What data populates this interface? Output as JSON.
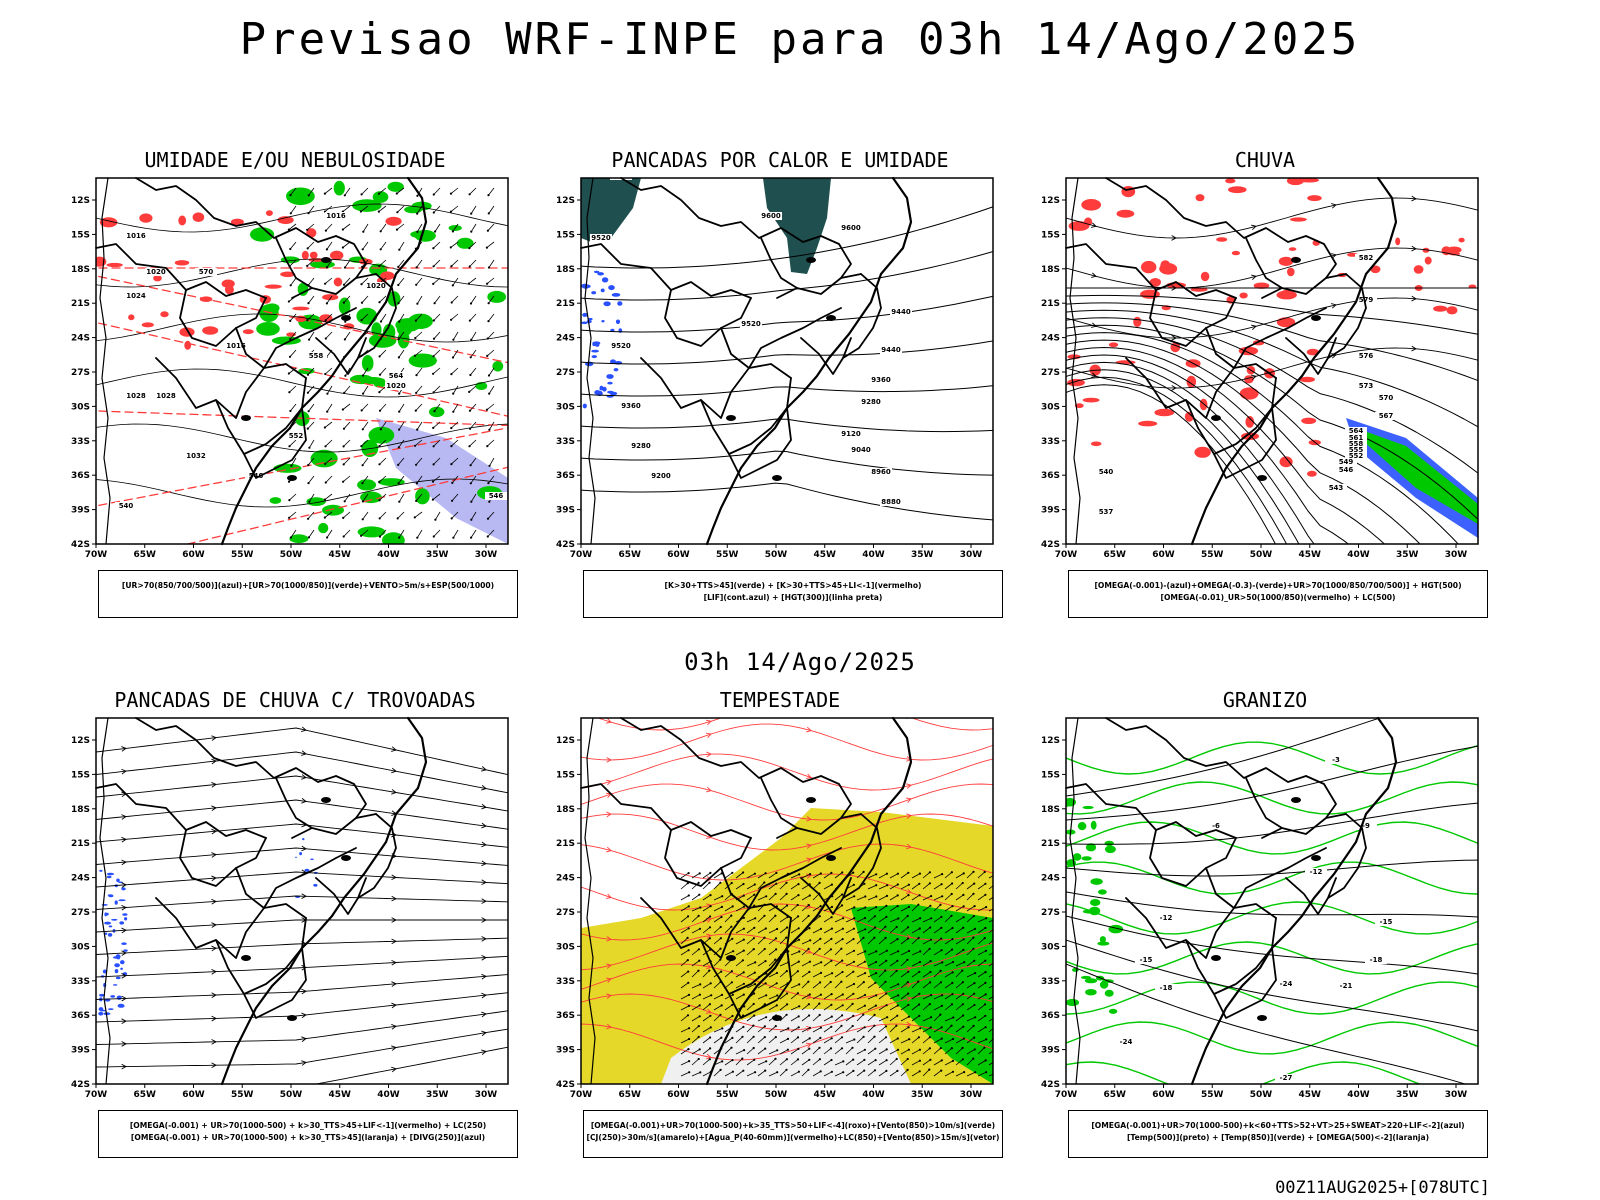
{
  "title": "Previsao WRF-INPE  para 03h 14/Ago/2025",
  "subtitle": "03h 14/Ago/2025",
  "footer": "00Z11AUG2025+[078UTC]",
  "axes": {
    "lat_ticks": [
      "12S",
      "15S",
      "18S",
      "21S",
      "24S",
      "27S",
      "30S",
      "33S",
      "36S",
      "39S",
      "42S"
    ],
    "lon_ticks": [
      "70W",
      "65W",
      "60W",
      "55W",
      "50W",
      "45W",
      "40W",
      "35W",
      "30W"
    ]
  },
  "colors": {
    "green": "#00c800",
    "red": "#ff3c3c",
    "blue": "#2850ff",
    "lavender": "#a6a6f0",
    "teal": "#1f4f4f",
    "yellow": "#e6d828",
    "black": "#000000"
  },
  "panels": [
    {
      "id": "umidade",
      "title": "UMIDADE E/OU NEBULOSIDADE",
      "legend": [
        "[UR>70(850/700/500)](azul)+[UR>70(1000/850)](verde)+VENTO>5m/s+ESP(500/1000)"
      ],
      "contour_labels": [
        "1016",
        "1016",
        "1020",
        "1020",
        "1024",
        "1028",
        "1028",
        "1032",
        "1016",
        "1020",
        "570",
        "564",
        "558",
        "552",
        "546",
        "540",
        "546"
      ]
    },
    {
      "id": "pancadas_calor",
      "title": "PANCADAS POR CALOR E UMIDADE",
      "legend": [
        "[K>30+TTS>45](verde) + [K>30+TTS>45+LI<-1](vermelho)",
        "[LIF](cont.azul) + [HGT(300)](linha preta)"
      ],
      "contour_labels": [
        "9600",
        "9600",
        "9600",
        "9520",
        "9520",
        "9520",
        "9440",
        "9440",
        "9360",
        "9360",
        "9280",
        "9280",
        "9200",
        "9120",
        "9040",
        "8960",
        "8880"
      ]
    },
    {
      "id": "chuva",
      "title": "CHUVA",
      "legend": [
        "[OMEGA(-0.001)-(azul)+OMEGA(-0.3)-(verde)+UR>70(1000/850/700/500)] + HGT(500)",
        "[OMEGA(-0.01)_UR>50(1000/850)(vermelho) + LC(500)"
      ],
      "contour_labels": [
        "582",
        "579",
        "576",
        "573",
        "570",
        "567",
        "564",
        "561",
        "558",
        "555",
        "552",
        "549",
        "546",
        "543",
        "540",
        "537"
      ]
    },
    {
      "id": "trovoadas",
      "title": "PANCADAS DE CHUVA C/ TROVOADAS",
      "legend": [
        "[OMEGA(-0.001) + UR>70(1000-500) + k>30_TTS>45+LIF<-1](vermelho) + LC(250)",
        "[OMEGA(-0.001) + UR>70(1000-500) + k>30_TTS>45](laranja) + [DIVG(250)](azul)"
      ],
      "contour_labels": []
    },
    {
      "id": "tempestade",
      "title": "TEMPESTADE",
      "legend": [
        "[OMEGA(-0.001)+UR>70(1000-500)+k>35_TTS>50+LIF<-4](roxo)+[Vento(850)>10m/s](verde)",
        "[CJ(250)>30m/s](amarelo)+[Agua_P(40-60mm)](vermelho)+LC(850)+[Vento(850)>15m/s](vetor)"
      ],
      "contour_labels": []
    },
    {
      "id": "granizo",
      "title": "GRANIZO",
      "legend": [
        "[OMEGA(-0.001)+UR>70(1000-500)+k<60+TTS>52+VT>25+SWEAT>220+LIF<-2](azul)",
        "[Temp(500)](preto) + [Temp(850)](verde) + [OMEGA(500)<-2](laranja)"
      ],
      "contour_labels": [
        "-3",
        "-6",
        "-9",
        "-12",
        "-12",
        "-15",
        "-15",
        "-18",
        "-18",
        "-21",
        "-24",
        "-24",
        "-27"
      ]
    }
  ]
}
